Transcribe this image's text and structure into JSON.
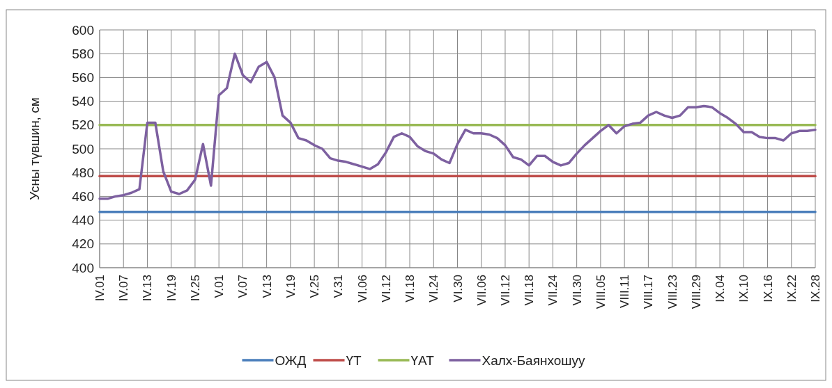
{
  "chart_data": {
    "type": "line",
    "ylabel": "Усны түвшин, см",
    "categories": [
      "IV.01",
      null,
      null,
      "IV.07",
      null,
      null,
      "IV.13",
      null,
      null,
      "IV.19",
      null,
      null,
      "IV.25",
      null,
      null,
      "V.01",
      null,
      null,
      "V.07",
      null,
      null,
      "V.13",
      null,
      null,
      "V.19",
      null,
      null,
      "V.25",
      null,
      null,
      "V.31",
      null,
      null,
      "VI.06",
      null,
      null,
      "VI.12",
      null,
      null,
      "VI.18",
      null,
      null,
      "VI.24",
      null,
      null,
      "VI.30",
      null,
      null,
      "VII.06",
      null,
      null,
      "VII.12",
      null,
      null,
      "VII.18",
      null,
      null,
      "VII.24",
      null,
      null,
      "VII.30",
      null,
      null,
      "VIII.05",
      null,
      null,
      "VIII.11",
      null,
      null,
      "VIII.17",
      null,
      null,
      "VIII.23",
      null,
      null,
      "VIII.29",
      null,
      null,
      "IX.04",
      null,
      null,
      "IX.10",
      null,
      null,
      "IX.16",
      null,
      null,
      "IX.22",
      null,
      null,
      "IX.28"
    ],
    "series": [
      {
        "name": "ОЖД",
        "color": "#4a7ebb",
        "values": [
          447,
          447,
          447,
          447,
          447,
          447,
          447,
          447,
          447,
          447,
          447,
          447,
          447,
          447,
          447,
          447,
          447,
          447,
          447,
          447,
          447,
          447,
          447,
          447,
          447,
          447,
          447,
          447,
          447,
          447,
          447,
          447,
          447,
          447,
          447,
          447,
          447,
          447,
          447,
          447,
          447,
          447,
          447,
          447,
          447,
          447,
          447,
          447,
          447,
          447,
          447,
          447,
          447,
          447,
          447,
          447,
          447,
          447,
          447,
          447,
          447,
          447,
          447,
          447,
          447,
          447,
          447,
          447,
          447,
          447,
          447,
          447,
          447,
          447,
          447,
          447,
          447,
          447,
          447,
          447,
          447,
          447,
          447,
          447,
          447,
          447,
          447,
          447,
          447,
          447,
          447
        ]
      },
      {
        "name": "ҮТ",
        "color": "#be4b48",
        "values": [
          477,
          477,
          477,
          477,
          477,
          477,
          477,
          477,
          477,
          477,
          477,
          477,
          477,
          477,
          477,
          477,
          477,
          477,
          477,
          477,
          477,
          477,
          477,
          477,
          477,
          477,
          477,
          477,
          477,
          477,
          477,
          477,
          477,
          477,
          477,
          477,
          477,
          477,
          477,
          477,
          477,
          477,
          477,
          477,
          477,
          477,
          477,
          477,
          477,
          477,
          477,
          477,
          477,
          477,
          477,
          477,
          477,
          477,
          477,
          477,
          477,
          477,
          477,
          477,
          477,
          477,
          477,
          477,
          477,
          477,
          477,
          477,
          477,
          477,
          477,
          477,
          477,
          477,
          477,
          477,
          477,
          477,
          477,
          477,
          477,
          477,
          477,
          477,
          477,
          477,
          477
        ]
      },
      {
        "name": "ҮАТ",
        "color": "#98b954",
        "values": [
          520,
          520,
          520,
          520,
          520,
          520,
          520,
          520,
          520,
          520,
          520,
          520,
          520,
          520,
          520,
          520,
          520,
          520,
          520,
          520,
          520,
          520,
          520,
          520,
          520,
          520,
          520,
          520,
          520,
          520,
          520,
          520,
          520,
          520,
          520,
          520,
          520,
          520,
          520,
          520,
          520,
          520,
          520,
          520,
          520,
          520,
          520,
          520,
          520,
          520,
          520,
          520,
          520,
          520,
          520,
          520,
          520,
          520,
          520,
          520,
          520,
          520,
          520,
          520,
          520,
          520,
          520,
          520,
          520,
          520,
          520,
          520,
          520,
          520,
          520,
          520,
          520,
          520,
          520,
          520,
          520,
          520,
          520,
          520,
          520,
          520,
          520,
          520,
          520,
          520,
          520
        ]
      },
      {
        "name": "Халх-Баянхошуу",
        "color": "#7d60a0",
        "values": [
          458,
          458,
          460,
          461,
          463,
          466,
          522,
          522,
          481,
          464,
          462,
          465,
          474,
          504,
          469,
          545,
          551,
          580,
          562,
          556,
          569,
          573,
          560,
          528,
          522,
          509,
          507,
          503,
          500,
          492,
          490,
          489,
          487,
          485,
          483,
          487,
          497,
          510,
          513,
          510,
          502,
          498,
          496,
          491,
          488,
          504,
          516,
          513,
          513,
          512,
          509,
          503,
          493,
          491,
          486,
          494,
          494,
          489,
          486,
          488,
          496,
          503,
          509,
          515,
          520,
          513,
          519,
          521,
          522,
          528,
          531,
          528,
          526,
          528,
          535,
          535,
          536,
          535,
          530,
          526,
          521,
          514,
          514,
          510,
          509,
          509,
          507,
          513,
          515,
          515,
          516
        ]
      }
    ],
    "ylim": [
      400,
      600
    ],
    "yticks": [
      400,
      420,
      440,
      460,
      480,
      500,
      520,
      540,
      560,
      580,
      600
    ],
    "grid": true,
    "legend": "bottom"
  }
}
